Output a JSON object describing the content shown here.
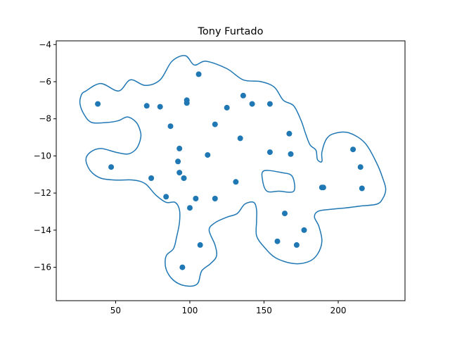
{
  "chart_data": {
    "type": "scatter",
    "title": "Tony Furtado",
    "xlabel": "",
    "ylabel": "",
    "xlim": [
      10,
      245
    ],
    "ylim": [
      -17.8,
      -3.8
    ],
    "xticks": [
      50,
      100,
      150,
      200
    ],
    "yticks": [
      -4,
      -6,
      -8,
      -10,
      -12,
      -14,
      -16
    ],
    "grid": false,
    "legend": "none",
    "colors": {
      "points": "#1f77b4",
      "contour": "#1f77b4",
      "axes": "#000000"
    },
    "points": [
      {
        "x": 38,
        "y": -7.2
      },
      {
        "x": 47,
        "y": -10.6
      },
      {
        "x": 71,
        "y": -7.3
      },
      {
        "x": 74,
        "y": -11.2
      },
      {
        "x": 80,
        "y": -7.35
      },
      {
        "x": 84,
        "y": -12.2
      },
      {
        "x": 87,
        "y": -8.4
      },
      {
        "x": 92,
        "y": -10.3
      },
      {
        "x": 93,
        "y": -9.6
      },
      {
        "x": 93,
        "y": -10.9
      },
      {
        "x": 95,
        "y": -16.0
      },
      {
        "x": 96,
        "y": -11.2
      },
      {
        "x": 98,
        "y": -7.15
      },
      {
        "x": 98,
        "y": -7.0
      },
      {
        "x": 100,
        "y": -12.8
      },
      {
        "x": 104,
        "y": -12.3
      },
      {
        "x": 106,
        "y": -5.6
      },
      {
        "x": 107,
        "y": -14.8
      },
      {
        "x": 112,
        "y": -9.95
      },
      {
        "x": 117,
        "y": -8.3
      },
      {
        "x": 117,
        "y": -12.3
      },
      {
        "x": 125,
        "y": -7.4
      },
      {
        "x": 131,
        "y": -11.4
      },
      {
        "x": 134,
        "y": -9.05
      },
      {
        "x": 136,
        "y": -6.75
      },
      {
        "x": 142,
        "y": -7.2
      },
      {
        "x": 154,
        "y": -7.2
      },
      {
        "x": 154,
        "y": -9.8
      },
      {
        "x": 159,
        "y": -14.6
      },
      {
        "x": 164,
        "y": -13.1
      },
      {
        "x": 167,
        "y": -8.8
      },
      {
        "x": 168,
        "y": -9.9
      },
      {
        "x": 172,
        "y": -14.8
      },
      {
        "x": 177,
        "y": -14.0
      },
      {
        "x": 189,
        "y": -11.7
      },
      {
        "x": 190,
        "y": -11.7
      },
      {
        "x": 210,
        "y": -9.65
      },
      {
        "x": 215,
        "y": -10.6
      },
      {
        "x": 216,
        "y": -11.75
      }
    ],
    "contour_outer": [
      [
        30,
        -6.5
      ],
      [
        40,
        -6.1
      ],
      [
        52,
        -6.5
      ],
      [
        60,
        -5.9
      ],
      [
        70,
        -6.2
      ],
      [
        80,
        -5.9
      ],
      [
        88,
        -4.9
      ],
      [
        97,
        -4.6
      ],
      [
        103,
        -5.1
      ],
      [
        111,
        -4.9
      ],
      [
        125,
        -5.3
      ],
      [
        136,
        -5.9
      ],
      [
        148,
        -6.0
      ],
      [
        157,
        -6.3
      ],
      [
        163,
        -7.0
      ],
      [
        170,
        -7.3
      ],
      [
        175,
        -8.1
      ],
      [
        178,
        -8.8
      ],
      [
        181,
        -9.4
      ],
      [
        185,
        -9.7
      ],
      [
        186,
        -10.2
      ],
      [
        189,
        -10.3
      ],
      [
        189,
        -9.8
      ],
      [
        192,
        -9.1
      ],
      [
        197,
        -8.8
      ],
      [
        207,
        -8.75
      ],
      [
        218,
        -9.3
      ],
      [
        226,
        -10.4
      ],
      [
        230,
        -11.2
      ],
      [
        232,
        -11.8
      ],
      [
        230,
        -12.3
      ],
      [
        226,
        -12.6
      ],
      [
        215,
        -12.7
      ],
      [
        205,
        -12.8
      ],
      [
        192,
        -12.9
      ],
      [
        186,
        -13.0
      ],
      [
        184,
        -13.3
      ],
      [
        187,
        -13.8
      ],
      [
        189,
        -14.6
      ],
      [
        186,
        -15.3
      ],
      [
        180,
        -15.7
      ],
      [
        170,
        -15.8
      ],
      [
        158,
        -15.5
      ],
      [
        150,
        -14.9
      ],
      [
        145,
        -14.3
      ],
      [
        145,
        -13.5
      ],
      [
        145,
        -12.9
      ],
      [
        143,
        -12.5
      ],
      [
        137,
        -12.6
      ],
      [
        132,
        -13.1
      ],
      [
        125,
        -13.3
      ],
      [
        117,
        -13.6
      ],
      [
        113,
        -14.0
      ],
      [
        117,
        -14.8
      ],
      [
        118,
        -15.4
      ],
      [
        114,
        -15.8
      ],
      [
        108,
        -16.2
      ],
      [
        105,
        -16.9
      ],
      [
        97,
        -17.0
      ],
      [
        89,
        -16.7
      ],
      [
        84,
        -16.1
      ],
      [
        84,
        -15.4
      ],
      [
        89,
        -15.0
      ],
      [
        91,
        -14.4
      ],
      [
        93,
        -13.6
      ],
      [
        93,
        -12.9
      ],
      [
        90,
        -12.5
      ],
      [
        84,
        -12.5
      ],
      [
        77,
        -12.1
      ],
      [
        70,
        -11.5
      ],
      [
        62,
        -11.3
      ],
      [
        50,
        -11.3
      ],
      [
        40,
        -11.2
      ],
      [
        33,
        -10.8
      ],
      [
        30,
        -10.2
      ],
      [
        33,
        -9.8
      ],
      [
        40,
        -9.6
      ],
      [
        50,
        -9.8
      ],
      [
        58,
        -9.9
      ],
      [
        63,
        -9.7
      ],
      [
        66,
        -9.3
      ],
      [
        67,
        -8.8
      ],
      [
        64,
        -8.2
      ],
      [
        58,
        -7.9
      ],
      [
        52,
        -8.1
      ],
      [
        44,
        -8.2
      ],
      [
        34,
        -8.2
      ],
      [
        29,
        -7.8
      ],
      [
        26,
        -7.2
      ],
      [
        27,
        -6.7
      ],
      [
        30,
        -6.5
      ]
    ],
    "contour_inner": [
      [
        150,
        -10.8
      ],
      [
        162,
        -10.9
      ],
      [
        169,
        -11.1
      ],
      [
        170,
        -11.9
      ],
      [
        160,
        -11.9
      ],
      [
        152,
        -11.9
      ],
      [
        149,
        -11.3
      ],
      [
        150,
        -10.8
      ]
    ]
  }
}
